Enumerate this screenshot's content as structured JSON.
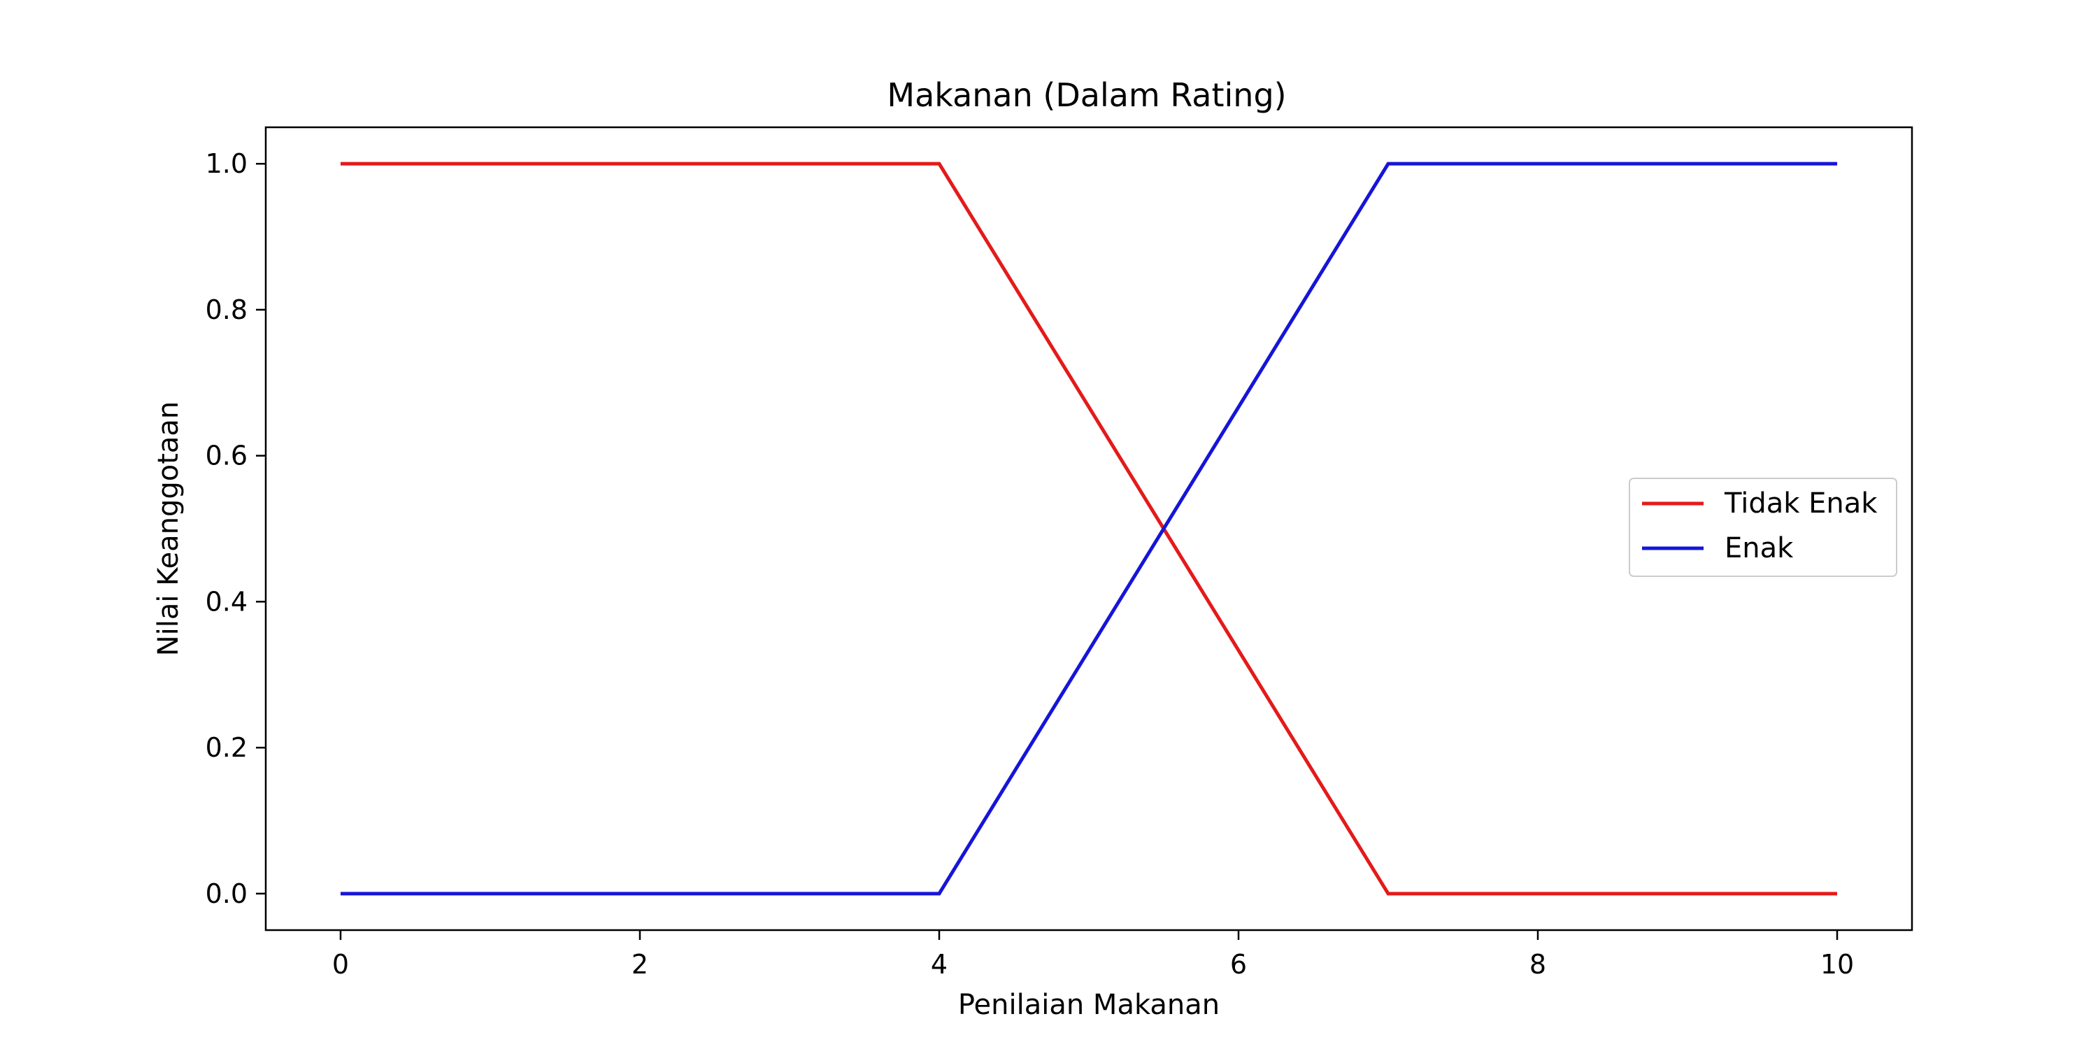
{
  "chart_data": {
    "type": "line",
    "title": "Makanan (Dalam Rating)",
    "xlabel": "Penilaian Makanan",
    "ylabel": "Nilai Keanggotaan",
    "xlim": [
      -0.5,
      10.5
    ],
    "ylim": [
      -0.05,
      1.05
    ],
    "x_ticks": [
      0,
      2,
      4,
      6,
      8,
      10
    ],
    "x_tick_labels": [
      "0",
      "2",
      "4",
      "6",
      "8",
      "10"
    ],
    "y_ticks": [
      0.0,
      0.2,
      0.4,
      0.6,
      0.8,
      1.0
    ],
    "y_tick_labels": [
      "0.0",
      "0.2",
      "0.4",
      "0.6",
      "0.8",
      "1.0"
    ],
    "grid": false,
    "legend_position": "center-right",
    "series": [
      {
        "name": "Tidak Enak",
        "color": "#e41a1a",
        "x": [
          0,
          4,
          7,
          10
        ],
        "y": [
          1,
          1,
          0,
          0
        ]
      },
      {
        "name": "Enak",
        "color": "#1515d8",
        "x": [
          0,
          4,
          7,
          10
        ],
        "y": [
          0,
          0,
          1,
          1
        ]
      }
    ]
  }
}
